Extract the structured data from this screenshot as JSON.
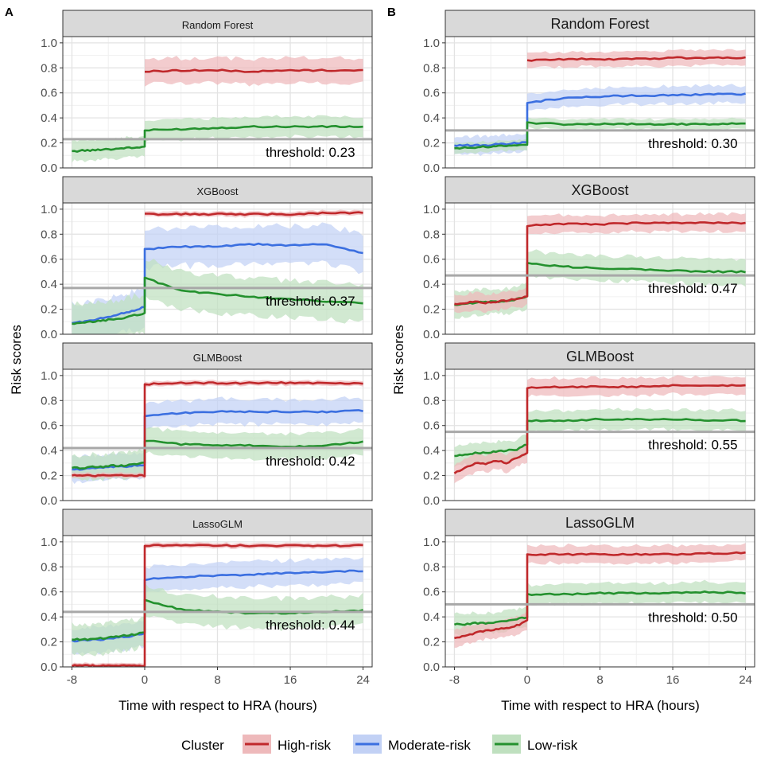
{
  "figure": {
    "panel_labels": [
      "A",
      "B"
    ],
    "ylabel": "Risk scores",
    "xlabel": "Time with respect to HRA (hours)",
    "legend_title": "Cluster"
  },
  "legend": [
    {
      "name": "High-risk",
      "color": "#c0282b",
      "fill": "#eeb9bb"
    },
    {
      "name": "Moderate-risk",
      "color": "#3b6fe0",
      "fill": "#c2d1f5"
    },
    {
      "name": "Low-risk",
      "color": "#24912e",
      "fill": "#bfe0bf"
    }
  ],
  "chart_data": [
    {
      "type": "line",
      "panel": "A",
      "title": "Random Forest",
      "threshold_label": "threshold: 0.23",
      "threshold": 0.23,
      "x": [
        -8,
        0,
        24
      ],
      "xlim": [
        -9,
        25
      ],
      "ylim": [
        0,
        1.05
      ],
      "xticks": [
        "-8",
        "0",
        "8",
        "16",
        "24"
      ],
      "yticks": [
        "0.0",
        "0.2",
        "0.4",
        "0.6",
        "0.8",
        "1.0"
      ],
      "series": [
        {
          "name": "High-risk",
          "pre": null,
          "post": [
            0.77,
            0.78,
            0.78,
            0.77,
            0.78,
            0.78,
            0.78
          ],
          "band": 0.1
        },
        {
          "name": "Low-risk",
          "pre": [
            0.13,
            0.14,
            0.14,
            0.15,
            0.15,
            0.16,
            0.16,
            0.17
          ],
          "post": [
            0.3,
            0.31,
            0.32,
            0.33,
            0.33,
            0.33,
            0.33
          ],
          "band": 0.08
        }
      ]
    },
    {
      "type": "line",
      "panel": "A",
      "title": "XGBoost",
      "threshold_label": "threshold: 0.37",
      "threshold": 0.37,
      "x": [
        -8,
        0,
        24
      ],
      "xlim": [
        -9,
        25
      ],
      "ylim": [
        0,
        1.05
      ],
      "xticks": [
        "-8",
        "0",
        "8",
        "16",
        "24"
      ],
      "yticks": [
        "0.0",
        "0.2",
        "0.4",
        "0.6",
        "0.8",
        "1.0"
      ],
      "series": [
        {
          "name": "High-risk",
          "pre": null,
          "post": [
            0.96,
            0.96,
            0.96,
            0.96,
            0.96,
            0.97,
            0.97
          ],
          "band": 0.02
        },
        {
          "name": "Moderate-risk",
          "pre": [
            0.09,
            0.1,
            0.11,
            0.13,
            0.15,
            0.17,
            0.19,
            0.22
          ],
          "post": [
            0.68,
            0.7,
            0.7,
            0.72,
            0.71,
            0.72,
            0.65
          ],
          "band": 0.15
        },
        {
          "name": "Low-risk",
          "pre": [
            0.08,
            0.09,
            0.1,
            0.11,
            0.12,
            0.13,
            0.15,
            0.17
          ],
          "post": [
            0.45,
            0.35,
            0.32,
            0.3,
            0.28,
            0.26,
            0.25
          ],
          "band": 0.15
        }
      ]
    },
    {
      "type": "line",
      "panel": "A",
      "title": "GLMBoost",
      "threshold_label": "threshold: 0.42",
      "threshold": 0.42,
      "x": [
        -8,
        0,
        24
      ],
      "xlim": [
        -9,
        25
      ],
      "ylim": [
        0,
        1.05
      ],
      "xticks": [
        "-8",
        "0",
        "8",
        "16",
        "24"
      ],
      "yticks": [
        "0.0",
        "0.2",
        "0.4",
        "0.6",
        "0.8",
        "1.0"
      ],
      "series": [
        {
          "name": "High-risk",
          "pre": [
            0.2,
            0.2,
            0.2,
            0.2,
            0.2,
            0.2,
            0.2,
            0.2
          ],
          "post": [
            0.93,
            0.94,
            0.94,
            0.94,
            0.94,
            0.94,
            0.94
          ],
          "band": 0.02
        },
        {
          "name": "Moderate-risk",
          "pre": [
            0.25,
            0.25,
            0.26,
            0.26,
            0.27,
            0.27,
            0.28,
            0.28
          ],
          "post": [
            0.68,
            0.7,
            0.71,
            0.71,
            0.71,
            0.71,
            0.72
          ],
          "band": 0.1
        },
        {
          "name": "Low-risk",
          "pre": [
            0.26,
            0.26,
            0.27,
            0.27,
            0.28,
            0.28,
            0.29,
            0.3
          ],
          "post": [
            0.48,
            0.45,
            0.44,
            0.44,
            0.43,
            0.44,
            0.47
          ],
          "band": 0.1
        }
      ]
    },
    {
      "type": "line",
      "panel": "A",
      "title": "LassoGLM",
      "threshold_label": "threshold: 0.44",
      "threshold": 0.44,
      "x": [
        -8,
        0,
        24
      ],
      "xlim": [
        -9,
        25
      ],
      "ylim": [
        0,
        1.05
      ],
      "xticks": [
        "-8",
        "0",
        "8",
        "16",
        "24"
      ],
      "yticks": [
        "0.0",
        "0.2",
        "0.4",
        "0.6",
        "0.8",
        "1.0"
      ],
      "series": [
        {
          "name": "High-risk",
          "pre": [
            0.01,
            0.01,
            0.01,
            0.01,
            0.01,
            0.01,
            0.01,
            0.01
          ],
          "post": [
            0.97,
            0.97,
            0.97,
            0.97,
            0.97,
            0.97,
            0.97
          ],
          "band": 0.02
        },
        {
          "name": "Moderate-risk",
          "pre": [
            0.21,
            0.21,
            0.22,
            0.22,
            0.23,
            0.24,
            0.25,
            0.27
          ],
          "post": [
            0.7,
            0.72,
            0.73,
            0.74,
            0.75,
            0.76,
            0.77
          ],
          "band": 0.1
        },
        {
          "name": "Low-risk",
          "pre": [
            0.22,
            0.22,
            0.22,
            0.23,
            0.24,
            0.25,
            0.26,
            0.28
          ],
          "post": [
            0.53,
            0.46,
            0.44,
            0.43,
            0.43,
            0.44,
            0.45
          ],
          "band": 0.12
        }
      ]
    },
    {
      "type": "line",
      "panel": "B",
      "title": "Random Forest",
      "threshold_label": "threshold: 0.30",
      "threshold": 0.3,
      "x": [
        -8,
        0,
        24
      ],
      "xlim": [
        -9,
        25
      ],
      "ylim": [
        0,
        1.05
      ],
      "xticks": [
        "-8",
        "0",
        "8",
        "16",
        "24"
      ],
      "yticks": [
        "0.0",
        "0.2",
        "0.4",
        "0.6",
        "0.8",
        "1.0"
      ],
      "series": [
        {
          "name": "High-risk",
          "pre": null,
          "post": [
            0.86,
            0.87,
            0.87,
            0.87,
            0.88,
            0.88,
            0.88
          ],
          "band": 0.06
        },
        {
          "name": "Moderate-risk",
          "pre": [
            0.18,
            0.18,
            0.18,
            0.18,
            0.19,
            0.19,
            0.2,
            0.2
          ],
          "post": [
            0.52,
            0.56,
            0.57,
            0.58,
            0.58,
            0.59,
            0.59
          ],
          "band": 0.07
        },
        {
          "name": "Low-risk",
          "pre": [
            0.16,
            0.16,
            0.16,
            0.17,
            0.17,
            0.18,
            0.18,
            0.19
          ],
          "post": [
            0.36,
            0.35,
            0.35,
            0.35,
            0.35,
            0.35,
            0.36
          ],
          "band": 0.04
        }
      ]
    },
    {
      "type": "line",
      "panel": "B",
      "title": "XGBoost",
      "threshold_label": "threshold: 0.47",
      "threshold": 0.47,
      "x": [
        -8,
        0,
        24
      ],
      "xlim": [
        -9,
        25
      ],
      "ylim": [
        0,
        1.05
      ],
      "xticks": [
        "-8",
        "0",
        "8",
        "16",
        "24"
      ],
      "yticks": [
        "0.0",
        "0.2",
        "0.4",
        "0.6",
        "0.8",
        "1.0"
      ],
      "series": [
        {
          "name": "High-risk",
          "pre": [
            0.24,
            0.25,
            0.26,
            0.25,
            0.26,
            0.27,
            0.28,
            0.3
          ],
          "post": [
            0.87,
            0.88,
            0.88,
            0.89,
            0.89,
            0.89,
            0.89
          ],
          "band": 0.07
        },
        {
          "name": "Low-risk",
          "pre": [
            0.23,
            0.24,
            0.25,
            0.26,
            0.26,
            0.27,
            0.28,
            0.3
          ],
          "post": [
            0.57,
            0.54,
            0.53,
            0.52,
            0.51,
            0.5,
            0.5
          ],
          "band": 0.1
        }
      ]
    },
    {
      "type": "line",
      "panel": "B",
      "title": "GLMBoost",
      "threshold_label": "threshold: 0.55",
      "threshold": 0.55,
      "x": [
        -8,
        0,
        24
      ],
      "xlim": [
        -9,
        25
      ],
      "ylim": [
        0,
        1.05
      ],
      "xticks": [
        "-8",
        "0",
        "8",
        "16",
        "24"
      ],
      "yticks": [
        "0.0",
        "0.2",
        "0.4",
        "0.6",
        "0.8",
        "1.0"
      ],
      "series": [
        {
          "name": "High-risk",
          "pre": [
            0.22,
            0.26,
            0.3,
            0.29,
            0.32,
            0.3,
            0.34,
            0.38
          ],
          "post": [
            0.9,
            0.91,
            0.91,
            0.91,
            0.92,
            0.92,
            0.92
          ],
          "band": 0.07
        },
        {
          "name": "Low-risk",
          "pre": [
            0.36,
            0.37,
            0.38,
            0.38,
            0.39,
            0.4,
            0.41,
            0.45
          ],
          "post": [
            0.64,
            0.64,
            0.65,
            0.65,
            0.65,
            0.64,
            0.64
          ],
          "band": 0.08
        }
      ]
    },
    {
      "type": "line",
      "panel": "B",
      "title": "LassoGLM",
      "threshold_label": "threshold: 0.50",
      "threshold": 0.5,
      "x": [
        -8,
        0,
        24
      ],
      "xlim": [
        -9,
        25
      ],
      "ylim": [
        0,
        1.05
      ],
      "xticks": [
        "-8",
        "0",
        "8",
        "16",
        "24"
      ],
      "yticks": [
        "0.0",
        "0.2",
        "0.4",
        "0.6",
        "0.8",
        "1.0"
      ],
      "series": [
        {
          "name": "High-risk",
          "pre": [
            0.23,
            0.25,
            0.27,
            0.29,
            0.3,
            0.31,
            0.33,
            0.37
          ],
          "post": [
            0.9,
            0.9,
            0.9,
            0.9,
            0.9,
            0.91,
            0.91
          ],
          "band": 0.07
        },
        {
          "name": "Low-risk",
          "pre": [
            0.34,
            0.34,
            0.35,
            0.35,
            0.36,
            0.37,
            0.38,
            0.4
          ],
          "post": [
            0.58,
            0.58,
            0.59,
            0.59,
            0.59,
            0.6,
            0.59
          ],
          "band": 0.08
        }
      ]
    }
  ]
}
